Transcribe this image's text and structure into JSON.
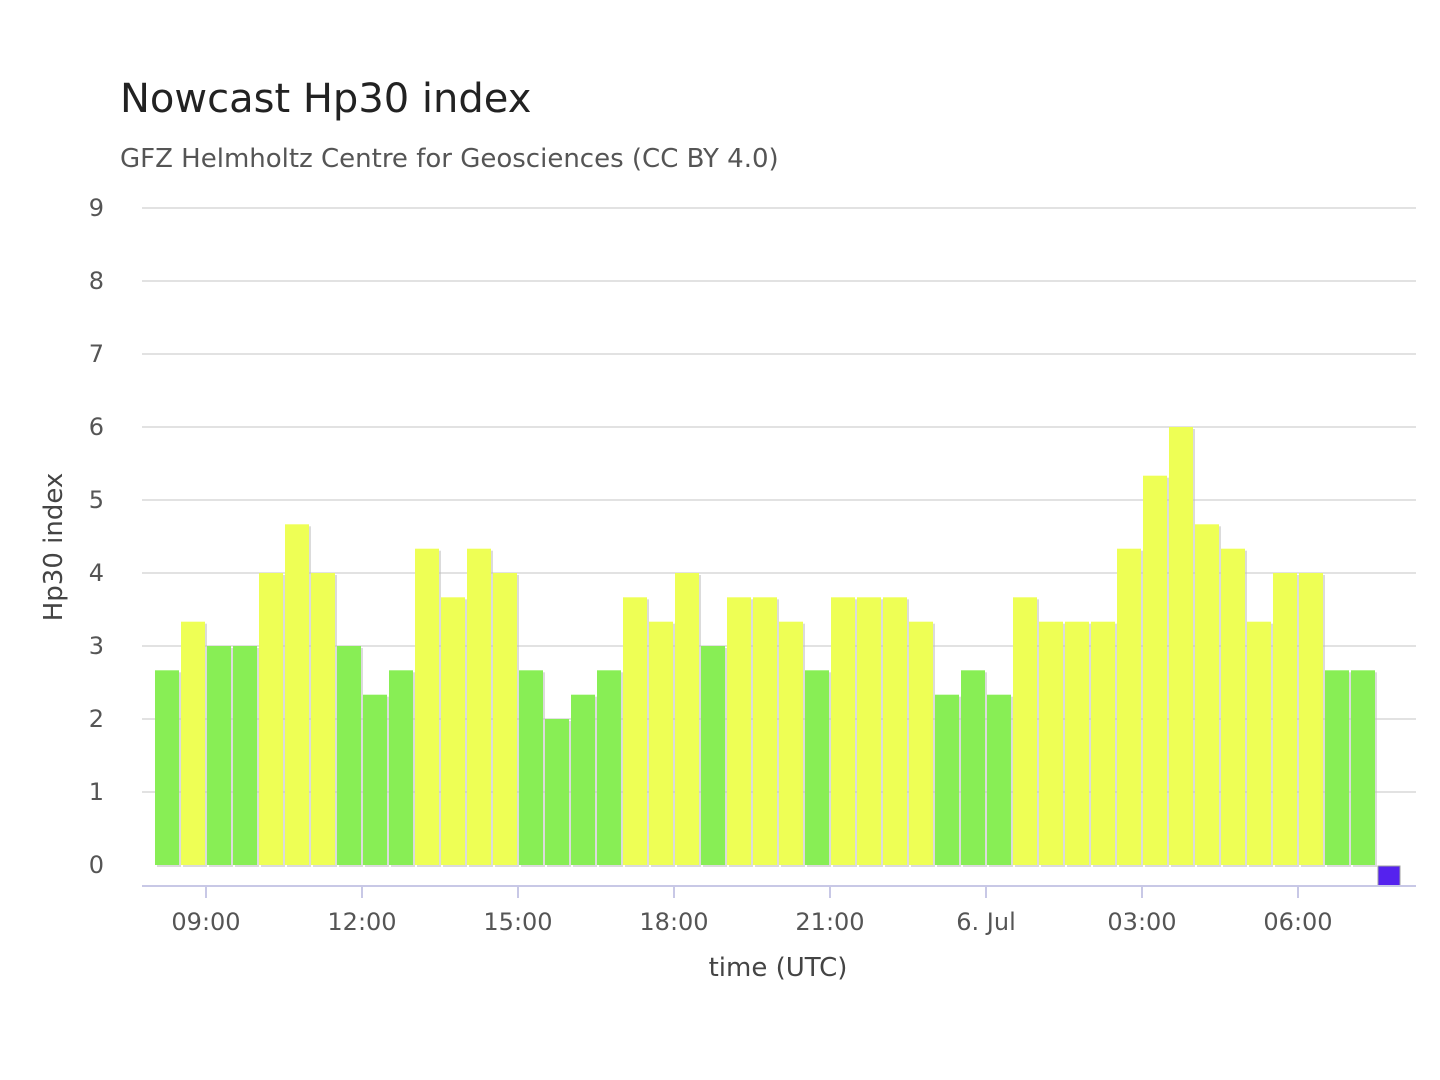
{
  "chart_data": {
    "type": "bar",
    "title": "Nowcast Hp30 index",
    "subtitle": "GFZ Helmholtz Centre for Geosciences (CC BY 4.0)",
    "xlabel": "time (UTC)",
    "ylabel": "Hp30 index",
    "ylim": [
      0,
      9
    ],
    "yticks": [
      "0",
      "1",
      "2",
      "3",
      "4",
      "5",
      "6",
      "7",
      "8",
      "9"
    ],
    "xticks": [
      {
        "label": "09:00",
        "x": "2025-07-05 09:00"
      },
      {
        "label": "12:00",
        "x": "2025-07-05 12:00"
      },
      {
        "label": "15:00",
        "x": "2025-07-05 15:00"
      },
      {
        "label": "18:00",
        "x": "2025-07-05 18:00"
      },
      {
        "label": "21:00",
        "x": "2025-07-05 21:00"
      },
      {
        "label": "6. Jul",
        "x": "2025-07-06 00:00"
      },
      {
        "label": "03:00",
        "x": "2025-07-06 03:00"
      },
      {
        "label": "06:00",
        "x": "2025-07-06 06:00"
      }
    ],
    "x": [
      "2025-07-05 08:00",
      "2025-07-05 08:30",
      "2025-07-05 09:00",
      "2025-07-05 09:30",
      "2025-07-05 10:00",
      "2025-07-05 10:30",
      "2025-07-05 11:00",
      "2025-07-05 11:30",
      "2025-07-05 12:00",
      "2025-07-05 12:30",
      "2025-07-05 13:00",
      "2025-07-05 13:30",
      "2025-07-05 14:00",
      "2025-07-05 14:30",
      "2025-07-05 15:00",
      "2025-07-05 15:30",
      "2025-07-05 16:00",
      "2025-07-05 16:30",
      "2025-07-05 17:00",
      "2025-07-05 17:30",
      "2025-07-05 18:00",
      "2025-07-05 18:30",
      "2025-07-05 19:00",
      "2025-07-05 19:30",
      "2025-07-05 20:00",
      "2025-07-05 20:30",
      "2025-07-05 21:00",
      "2025-07-05 21:30",
      "2025-07-05 22:00",
      "2025-07-05 22:30",
      "2025-07-05 23:00",
      "2025-07-05 23:30",
      "2025-07-06 00:00",
      "2025-07-06 00:30",
      "2025-07-06 01:00",
      "2025-07-06 01:30",
      "2025-07-06 02:00",
      "2025-07-06 02:30",
      "2025-07-06 03:00",
      "2025-07-06 03:30",
      "2025-07-06 04:00",
      "2025-07-06 04:30",
      "2025-07-06 05:00",
      "2025-07-06 05:30",
      "2025-07-06 06:00",
      "2025-07-06 06:30",
      "2025-07-06 07:00",
      "2025-07-06 07:30"
    ],
    "values": [
      2.667,
      3.333,
      3.0,
      3.0,
      4.0,
      4.667,
      4.0,
      3.0,
      2.333,
      2.667,
      4.333,
      3.667,
      4.333,
      4.0,
      2.667,
      2.0,
      2.333,
      2.667,
      3.667,
      3.333,
      4.0,
      3.0,
      3.667,
      3.667,
      3.333,
      2.667,
      3.667,
      3.667,
      3.667,
      3.333,
      2.333,
      2.667,
      2.333,
      3.667,
      3.333,
      3.333,
      3.333,
      4.333,
      5.333,
      6.0,
      4.667,
      4.333,
      3.333,
      4.0,
      4.0,
      2.667,
      2.667,
      0.0
    ],
    "color_scale": [
      {
        "min": 0,
        "max": 0.1,
        "color": "#5522ee"
      },
      {
        "min": 0.1,
        "max": 3.1,
        "color": "#88ee55"
      },
      {
        "min": 3.1,
        "max": 9,
        "color": "#eeff55"
      }
    ],
    "grid": true,
    "legend": "none"
  }
}
